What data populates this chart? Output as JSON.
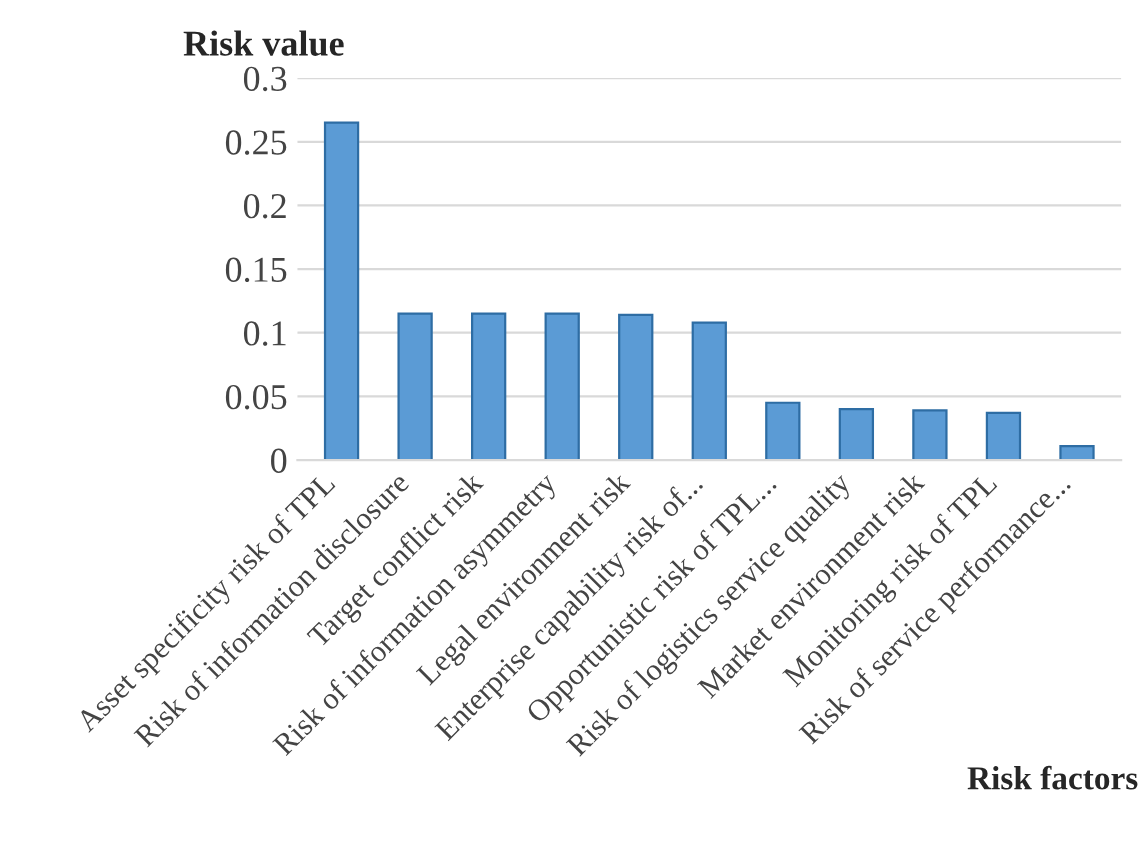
{
  "chart_data": {
    "type": "bar",
    "xlabel": "Risk factors",
    "ylabel": "Risk value",
    "categories": [
      "Asset specificity risk of TPL",
      "Risk of information disclosure",
      "Target conflict risk",
      "Risk of information asymmetry",
      "Legal environment risk",
      "Enterprise capability risk of...",
      "Opportunistic risk of TPL...",
      "Risk of logistics service quality",
      "Market environment risk",
      "Monitoring risk of TPL",
      "Risk of service performance..."
    ],
    "values": [
      0.265,
      0.115,
      0.115,
      0.115,
      0.114,
      0.108,
      0.045,
      0.04,
      0.039,
      0.037,
      0.011
    ],
    "color": "#5b9bd5",
    "ylim": [
      0,
      0.3
    ],
    "yticks": [
      0,
      0.05,
      0.1,
      0.15,
      0.2,
      0.25,
      0.3
    ],
    "grid": "y"
  }
}
